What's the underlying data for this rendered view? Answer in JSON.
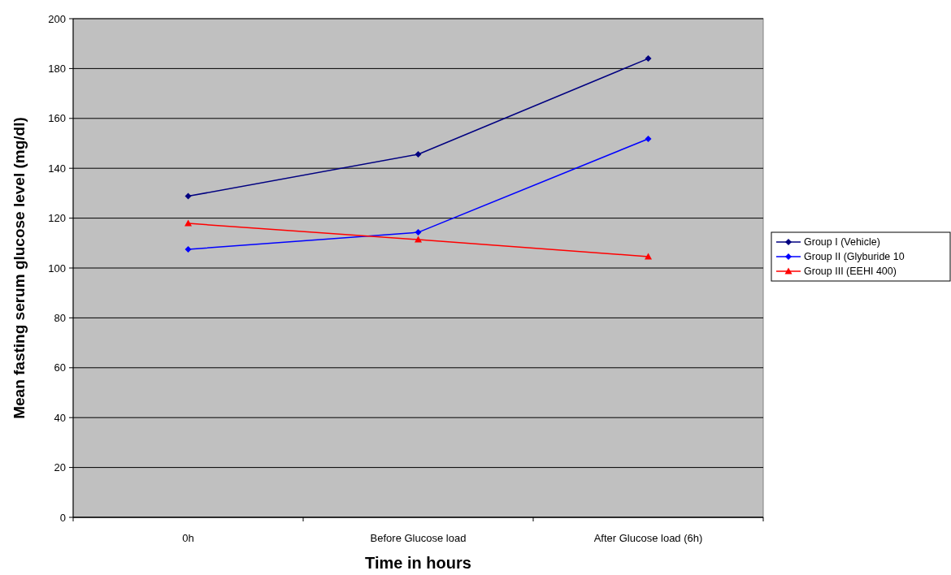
{
  "chart_data": {
    "type": "line",
    "xlabel": "Time in hours",
    "ylabel": "Mean fasting serum glucose level (mg/dl)",
    "categories": [
      "0h",
      "Before Glucose load",
      "After Glucose load (6h)"
    ],
    "series": [
      {
        "name": "Group I (Vehicle)",
        "color": "#000080",
        "marker": "diamond",
        "values": [
          128.8,
          145.6,
          184
        ]
      },
      {
        "name": "Group II (Glyburide 10",
        "color": "#0000ff",
        "marker": "diamond",
        "values": [
          107.5,
          114.3,
          151.8
        ]
      },
      {
        "name": "Group III (EEHI 400)",
        "color": "#ff0000",
        "marker": "triangle",
        "values": [
          117.9,
          111.4,
          104.6
        ]
      }
    ],
    "ylim": [
      0,
      200
    ],
    "yticks": [
      0,
      20,
      40,
      60,
      80,
      100,
      120,
      140,
      160,
      180,
      200
    ],
    "grid": "y",
    "legend": "right"
  }
}
